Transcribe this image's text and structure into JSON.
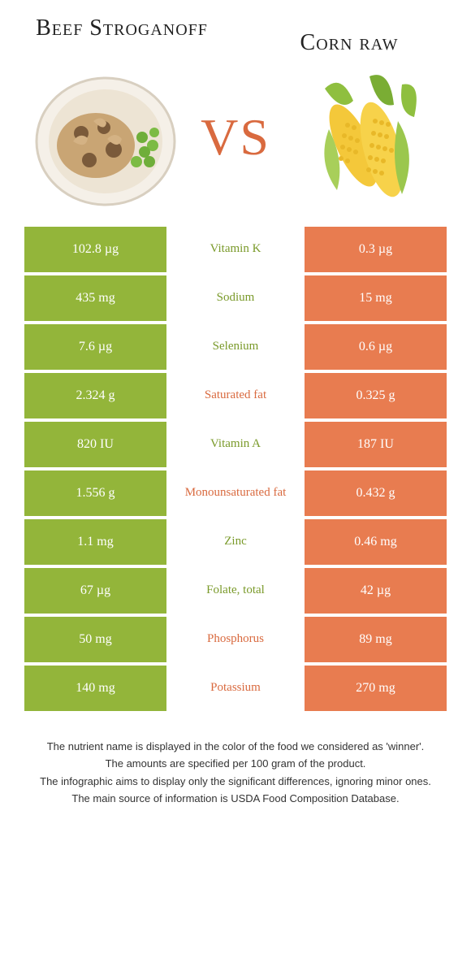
{
  "colors": {
    "left_bg": "#93b53a",
    "right_bg": "#e87c50",
    "left_label": "#7a9a2a",
    "right_label": "#d96a3f",
    "vs": "#d96a3f",
    "text": "#333333",
    "white": "#ffffff"
  },
  "header": {
    "left_title": "Beef Stroganoff",
    "right_title": "Corn raw",
    "vs": "VS"
  },
  "rows": [
    {
      "left": "102.8 µg",
      "label": "Vitamin K",
      "right": "0.3 µg",
      "label_side": "left"
    },
    {
      "left": "435 mg",
      "label": "Sodium",
      "right": "15 mg",
      "label_side": "left"
    },
    {
      "left": "7.6 µg",
      "label": "Selenium",
      "right": "0.6 µg",
      "label_side": "left"
    },
    {
      "left": "2.324 g",
      "label": "Saturated fat",
      "right": "0.325 g",
      "label_side": "right"
    },
    {
      "left": "820 IU",
      "label": "Vitamin A",
      "right": "187 IU",
      "label_side": "left"
    },
    {
      "left": "1.556 g",
      "label": "Monounsaturated fat",
      "right": "0.432 g",
      "label_side": "right"
    },
    {
      "left": "1.1 mg",
      "label": "Zinc",
      "right": "0.46 mg",
      "label_side": "left"
    },
    {
      "left": "67 µg",
      "label": "Folate, total",
      "right": "42 µg",
      "label_side": "left"
    },
    {
      "left": "50 mg",
      "label": "Phosphorus",
      "right": "89 mg",
      "label_side": "right"
    },
    {
      "left": "140 mg",
      "label": "Potassium",
      "right": "270 mg",
      "label_side": "right"
    }
  ],
  "footer": {
    "line1": "The nutrient name is displayed in the color of the food we considered as 'winner'.",
    "line2": "The amounts are specified per 100 gram of the product.",
    "line3": "The infographic aims to display only the significant differences, ignoring minor ones.",
    "line4": "The main source of information is USDA Food Composition Database."
  }
}
